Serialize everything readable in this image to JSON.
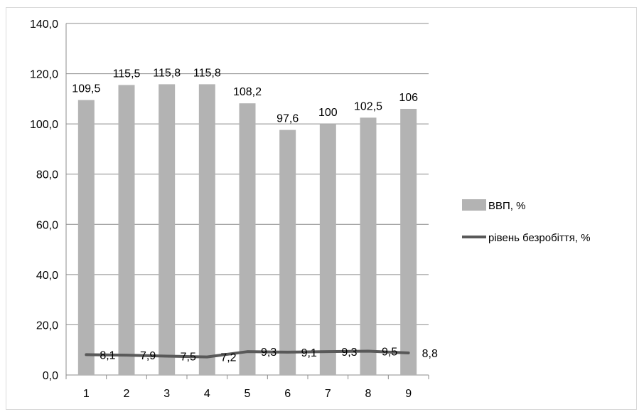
{
  "chart_data": {
    "type": "bar",
    "categories": [
      "1",
      "2",
      "3",
      "4",
      "5",
      "6",
      "7",
      "8",
      "9"
    ],
    "ylim": [
      0,
      140
    ],
    "yticks": [
      "0,0",
      "20,0",
      "40,0",
      "60,0",
      "80,0",
      "100,0",
      "120,0",
      "140,0"
    ],
    "grid": true,
    "legend_position": "right",
    "series": [
      {
        "name": "ВВП, %",
        "type": "bar",
        "color": "#b3b3b3",
        "values": [
          109.5,
          115.5,
          115.8,
          115.8,
          108.2,
          97.6,
          100,
          102.5,
          106
        ],
        "labels": [
          "109,5",
          "115,5",
          "115,8",
          "115,8",
          "108,2",
          "97,6",
          "100",
          "102,5",
          "106"
        ]
      },
      {
        "name": "рівень безробіття, %",
        "type": "line",
        "color": "#595959",
        "values": [
          8.1,
          7.9,
          7.5,
          7.2,
          9.3,
          9.1,
          9.3,
          9.5,
          8.8
        ],
        "labels": [
          "8,1",
          "7,9",
          "7,5",
          "7,2",
          "9,3",
          "9,1",
          "9,3",
          "9,5",
          "8,8"
        ]
      }
    ]
  }
}
